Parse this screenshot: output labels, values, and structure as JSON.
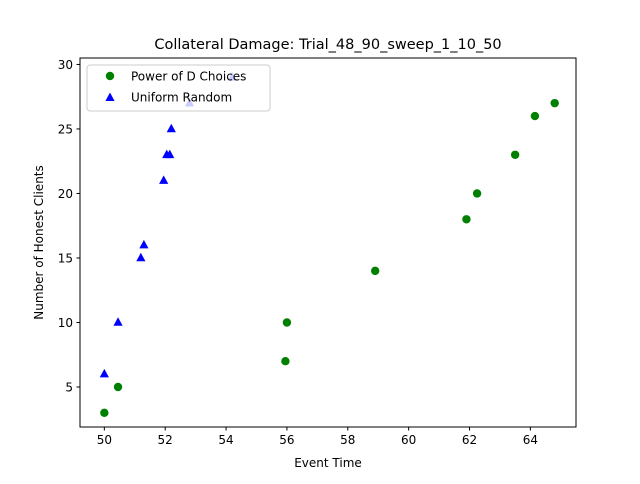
{
  "chart_data": {
    "type": "scatter",
    "title": "Collateral Damage: Trial_48_90_sweep_1_10_50",
    "xlabel": "Event Time",
    "ylabel": "Number of Honest Clients",
    "xlim": [
      49.2,
      65.5
    ],
    "ylim": [
      1.9,
      30.5
    ],
    "xticks": [
      50,
      52,
      54,
      56,
      58,
      60,
      62,
      64
    ],
    "yticks": [
      5,
      10,
      15,
      20,
      25,
      30
    ],
    "grid": false,
    "legend_position": "upper-left",
    "series": [
      {
        "name": "Power of D Choices",
        "marker": "circle",
        "color": "#008000",
        "points": [
          {
            "x": 50.0,
            "y": 3
          },
          {
            "x": 50.45,
            "y": 5
          },
          {
            "x": 55.95,
            "y": 7
          },
          {
            "x": 56.0,
            "y": 10
          },
          {
            "x": 58.9,
            "y": 14
          },
          {
            "x": 61.9,
            "y": 18
          },
          {
            "x": 62.25,
            "y": 20
          },
          {
            "x": 63.5,
            "y": 23
          },
          {
            "x": 64.15,
            "y": 26
          },
          {
            "x": 64.8,
            "y": 27
          }
        ]
      },
      {
        "name": "Uniform Random",
        "marker": "triangle",
        "color": "#0000ff",
        "points": [
          {
            "x": 50.0,
            "y": 6
          },
          {
            "x": 50.45,
            "y": 10
          },
          {
            "x": 51.2,
            "y": 15
          },
          {
            "x": 51.3,
            "y": 16
          },
          {
            "x": 51.95,
            "y": 21
          },
          {
            "x": 52.05,
            "y": 23
          },
          {
            "x": 52.15,
            "y": 23
          },
          {
            "x": 52.2,
            "y": 25
          },
          {
            "x": 52.8,
            "y": 27
          },
          {
            "x": 54.2,
            "y": 29
          }
        ]
      }
    ]
  }
}
